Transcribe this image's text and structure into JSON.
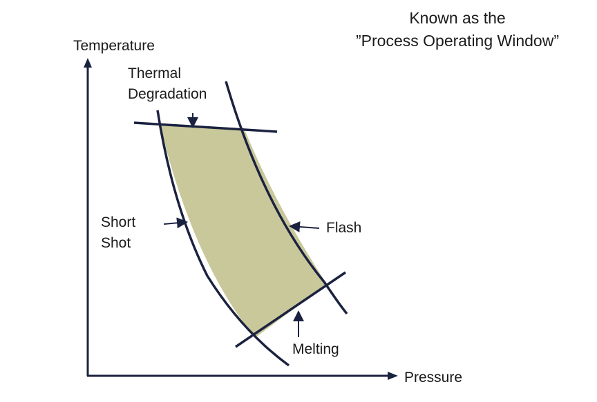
{
  "title": {
    "line1": "Known as the",
    "line2": "”Process Operating Window”"
  },
  "axes": {
    "y_label": "Temperature",
    "x_label": "Pressure"
  },
  "boundaries": {
    "thermal_degradation": {
      "line1": "Thermal",
      "line2": "Degradation"
    },
    "short_shot": {
      "line1": "Short",
      "line2": "Shot"
    },
    "flash": "Flash",
    "melting": "Melting"
  },
  "colors": {
    "window_fill": "#c8c89a",
    "boundary_line": "#1b2240",
    "axis": "#1b2240"
  }
}
